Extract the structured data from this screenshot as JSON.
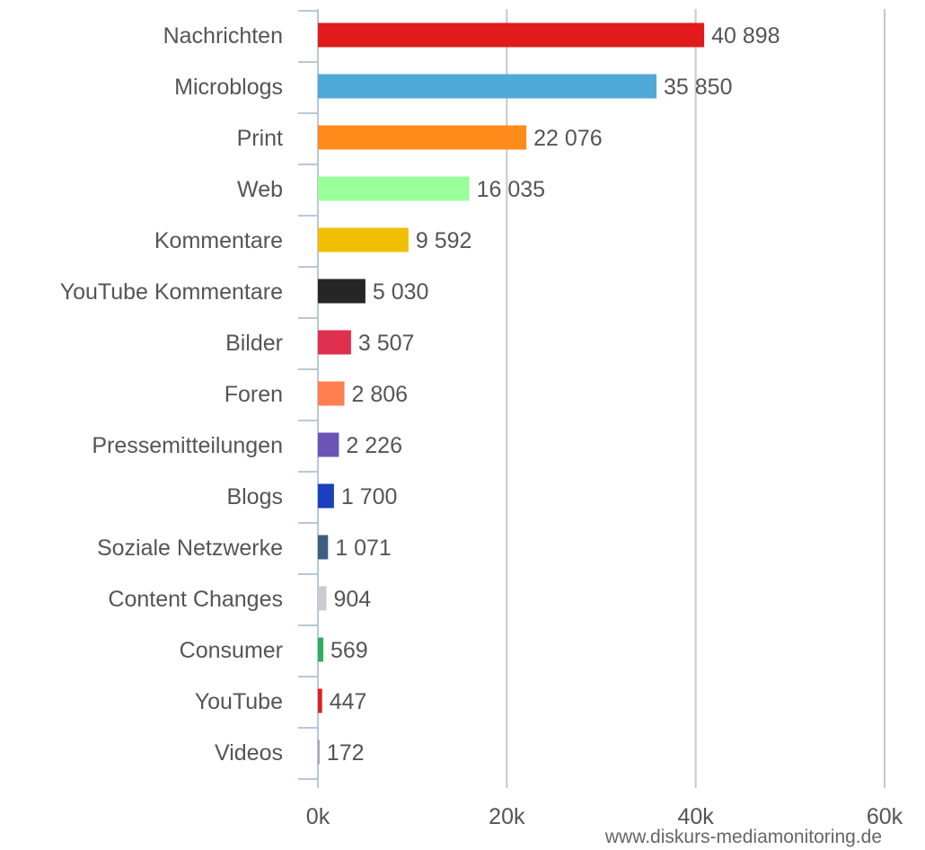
{
  "chart_data": {
    "type": "bar",
    "orientation": "horizontal",
    "categories": [
      "Nachrichten",
      "Microblogs",
      "Print",
      "Web",
      "Kommentare",
      "YouTube Kommentare",
      "Bilder",
      "Foren",
      "Pressemitteilungen",
      "Blogs",
      "Soziale Netzwerke",
      "Content Changes",
      "Consumer",
      "YouTube",
      "Videos"
    ],
    "values": [
      40898,
      35850,
      22076,
      16035,
      9592,
      5030,
      3507,
      2806,
      2226,
      1700,
      1071,
      904,
      569,
      447,
      172
    ],
    "value_labels": [
      "40 898",
      "35 850",
      "22 076",
      "16 035",
      "9 592",
      "5 030",
      "3 507",
      "2 806",
      "2 226",
      "1 700",
      "1 071",
      "904",
      "569",
      "447",
      "172"
    ],
    "colors": [
      "#e11b1b",
      "#4fa9d9",
      "#ff8c1a",
      "#99ff99",
      "#f0c000",
      "#262626",
      "#e0304f",
      "#ff7f50",
      "#6a55b5",
      "#1a3fbf",
      "#3d5f7f",
      "#c8ccd2",
      "#2eae5e",
      "#e02020",
      "#9aa0a8"
    ],
    "xlim": [
      0,
      60000
    ],
    "x_ticks": [
      0,
      20000,
      40000,
      60000
    ],
    "x_tick_labels": [
      "0k",
      "20k",
      "40k",
      "60k"
    ],
    "grid": true,
    "title": "",
    "xlabel": "",
    "ylabel": ""
  },
  "source_text": "www.diskurs-mediamonitoring.de",
  "colors": {
    "axis": "#b8c8d8",
    "grid": "#c8c8c8",
    "text": "#555555"
  }
}
